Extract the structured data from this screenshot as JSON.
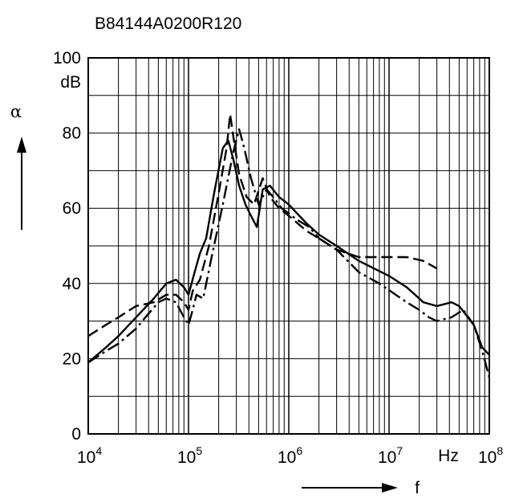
{
  "chart_data": {
    "type": "line",
    "title": "B84144A0200R120",
    "ylabel": "α",
    "yunit": "dB",
    "xlabel": "f",
    "xunit": "Hz",
    "xscale": "log",
    "xlim": [
      10000,
      100000000
    ],
    "ylim": [
      0,
      100
    ],
    "grid": true,
    "x_ticks": [
      {
        "base": "10",
        "exp": "4"
      },
      {
        "base": "10",
        "exp": "5"
      },
      {
        "base": "10",
        "exp": "6"
      },
      {
        "base": "10",
        "exp": "7"
      },
      {
        "base": "10",
        "exp": "8"
      }
    ],
    "y_ticks": [
      "0",
      "20",
      "40",
      "60",
      "80",
      "100"
    ],
    "series": [
      {
        "style": "solid",
        "points": [
          [
            10000,
            19
          ],
          [
            15000,
            23
          ],
          [
            20000,
            26
          ],
          [
            30000,
            31
          ],
          [
            45000,
            36
          ],
          [
            60000,
            40
          ],
          [
            75000,
            41
          ],
          [
            90000,
            39
          ],
          [
            100000,
            37
          ],
          [
            115000,
            43
          ],
          [
            130000,
            48
          ],
          [
            150000,
            52
          ],
          [
            180000,
            64
          ],
          [
            220000,
            76
          ],
          [
            250000,
            78
          ],
          [
            280000,
            73
          ],
          [
            320000,
            66
          ],
          [
            370000,
            61
          ],
          [
            420000,
            58
          ],
          [
            480000,
            55
          ],
          [
            550000,
            65
          ],
          [
            650000,
            66
          ],
          [
            800000,
            63
          ],
          [
            1000000,
            61
          ],
          [
            1500000,
            56
          ],
          [
            2000000,
            53
          ],
          [
            3000000,
            50
          ],
          [
            5000000,
            46
          ],
          [
            10000000,
            42
          ],
          [
            15000000,
            39
          ],
          [
            22000000,
            35
          ],
          [
            30000000,
            34
          ],
          [
            42000000,
            35
          ],
          [
            50000000,
            34
          ],
          [
            70000000,
            29
          ],
          [
            85000000,
            23
          ],
          [
            100000000,
            21
          ]
        ]
      },
      {
        "style": "dash-long",
        "points": [
          [
            10000,
            26
          ],
          [
            15000,
            29
          ],
          [
            20000,
            31
          ],
          [
            30000,
            34
          ],
          [
            45000,
            35
          ],
          [
            60000,
            37
          ],
          [
            75000,
            37
          ],
          [
            90000,
            35
          ],
          [
            100000,
            33
          ],
          [
            110000,
            38
          ],
          [
            130000,
            41
          ],
          [
            160000,
            50
          ],
          [
            200000,
            64
          ],
          [
            240000,
            76
          ],
          [
            260000,
            85
          ],
          [
            280000,
            79
          ],
          [
            320000,
            69
          ],
          [
            380000,
            63
          ],
          [
            450000,
            61
          ],
          [
            550000,
            68
          ],
          [
            650000,
            63
          ],
          [
            800000,
            60
          ],
          [
            1000000,
            58
          ],
          [
            1500000,
            54
          ],
          [
            2000000,
            52
          ],
          [
            3000000,
            49
          ],
          [
            5000000,
            47
          ],
          [
            10000000,
            47
          ],
          [
            15000000,
            47
          ],
          [
            22000000,
            46
          ],
          [
            30000000,
            44
          ]
        ]
      },
      {
        "style": "dash-dot",
        "points": [
          [
            10000,
            19
          ],
          [
            15000,
            22
          ],
          [
            20000,
            24
          ],
          [
            30000,
            28
          ],
          [
            40000,
            32
          ],
          [
            50000,
            35
          ],
          [
            60000,
            36
          ],
          [
            75000,
            35
          ],
          [
            90000,
            31
          ],
          [
            100000,
            29
          ],
          [
            110000,
            33
          ],
          [
            120000,
            37
          ],
          [
            140000,
            36
          ],
          [
            170000,
            47
          ],
          [
            220000,
            61
          ],
          [
            280000,
            75
          ],
          [
            320000,
            81
          ],
          [
            360000,
            76
          ],
          [
            420000,
            68
          ],
          [
            500000,
            61
          ],
          [
            600000,
            65
          ],
          [
            700000,
            63
          ],
          [
            850000,
            60
          ],
          [
            1200000,
            57
          ],
          [
            1600000,
            55
          ],
          [
            2000000,
            52
          ],
          [
            3000000,
            49
          ],
          [
            5000000,
            43
          ],
          [
            8000000,
            40
          ],
          [
            15000000,
            35
          ],
          [
            20000000,
            33
          ],
          [
            25000000,
            31
          ],
          [
            30000000,
            30
          ],
          [
            42000000,
            31
          ],
          [
            55000000,
            33
          ],
          [
            70000000,
            29
          ],
          [
            85000000,
            22
          ],
          [
            100000000,
            15
          ]
        ]
      }
    ]
  }
}
